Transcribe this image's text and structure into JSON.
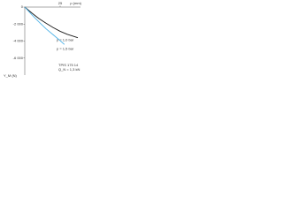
{
  "chart_data": {
    "type": "line",
    "x_label": "p (mm)",
    "y_label": "Y_M (N)",
    "xlim": [
      0,
      37.5
    ],
    "xticks": [
      25
    ],
    "ylim": [
      -8000,
      0
    ],
    "yticks": [
      {
        "value": 0,
        "label": "0"
      },
      {
        "value": -2000,
        "label": "-2 000"
      },
      {
        "value": -4000,
        "label": "-4 000"
      },
      {
        "value": -6000,
        "label": "-6 000"
      }
    ],
    "series": [
      {
        "name": "p = 1,0 bar",
        "color": "#1a1a1a",
        "x": [
          0,
          5,
          10,
          15,
          20,
          25,
          30,
          37.5
        ],
        "values": [
          0,
          -700,
          -1350,
          -1900,
          -2400,
          -2850,
          -3200,
          -3600
        ]
      },
      {
        "name": "p = 1,5 bar",
        "color": "#4fb3e8",
        "x": [
          0,
          5,
          10,
          15,
          20,
          25,
          28
        ],
        "values": [
          0,
          -900,
          -1750,
          -2550,
          -3250,
          -3950,
          -4400
        ]
      }
    ],
    "annotations": [
      "TPIS 175 14",
      "Q_N = 1,3 kN"
    ]
  }
}
